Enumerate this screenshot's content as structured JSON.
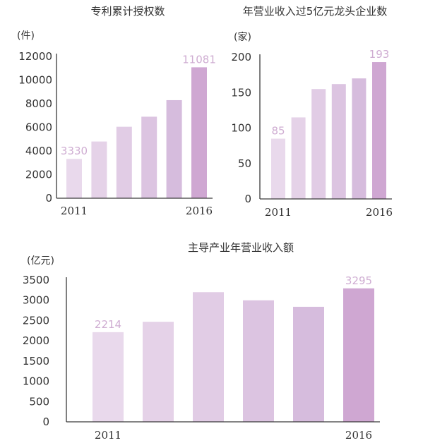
{
  "colors": {
    "bar_shades": [
      "#e9d9ec",
      "#e5d2e8",
      "#e1cce5",
      "#dcc4e1",
      "#d6bcdd",
      "#cfa7d2"
    ],
    "label_color": "#cfadd2",
    "axis": "#3a3a3a"
  },
  "chart_data": [
    {
      "type": "bar",
      "title": "专利累计授权数",
      "unit": "(件)",
      "categories": [
        "2011",
        "2012",
        "2013",
        "2014",
        "2015",
        "2016"
      ],
      "x_tick_labels": [
        "2011",
        "",
        "",
        "",
        "",
        "2016"
      ],
      "values": [
        3330,
        4800,
        6050,
        6900,
        8300,
        11081
      ],
      "data_labels": [
        "3330",
        "",
        "",
        "",
        "",
        "11081"
      ],
      "ylim": [
        0,
        12000
      ],
      "yticks": [
        "0",
        "2000",
        "4000",
        "6000",
        "8000",
        "10000",
        "12000"
      ],
      "grid": false
    },
    {
      "type": "bar",
      "title": "年营业收入过5亿元龙头企业数",
      "unit": "(家)",
      "categories": [
        "2011",
        "2012",
        "2013",
        "2014",
        "2015",
        "2016"
      ],
      "x_tick_labels": [
        "2011",
        "",
        "",
        "",
        "",
        "2016"
      ],
      "values": [
        85,
        115,
        155,
        162,
        170,
        193
      ],
      "data_labels": [
        "85",
        "",
        "",
        "",
        "",
        "193"
      ],
      "ylim": [
        0,
        200
      ],
      "yticks": [
        "0",
        "50",
        "100",
        "150",
        "200"
      ],
      "grid": false
    },
    {
      "type": "bar",
      "title": "主导产业年营业收入额",
      "unit": "(亿元)",
      "categories": [
        "2011",
        "2012",
        "2013",
        "2014",
        "2015",
        "2016"
      ],
      "x_tick_labels": [
        "2011",
        "",
        "",
        "",
        "",
        "2016"
      ],
      "values": [
        2214,
        2470,
        3200,
        3000,
        2840,
        3295
      ],
      "data_labels": [
        "2214",
        "",
        "",
        "",
        "",
        "3295"
      ],
      "ylim": [
        0,
        3500
      ],
      "yticks": [
        "0",
        "500",
        "1000",
        "1500",
        "2000",
        "2500",
        "3000",
        "3500"
      ],
      "grid": false
    }
  ]
}
